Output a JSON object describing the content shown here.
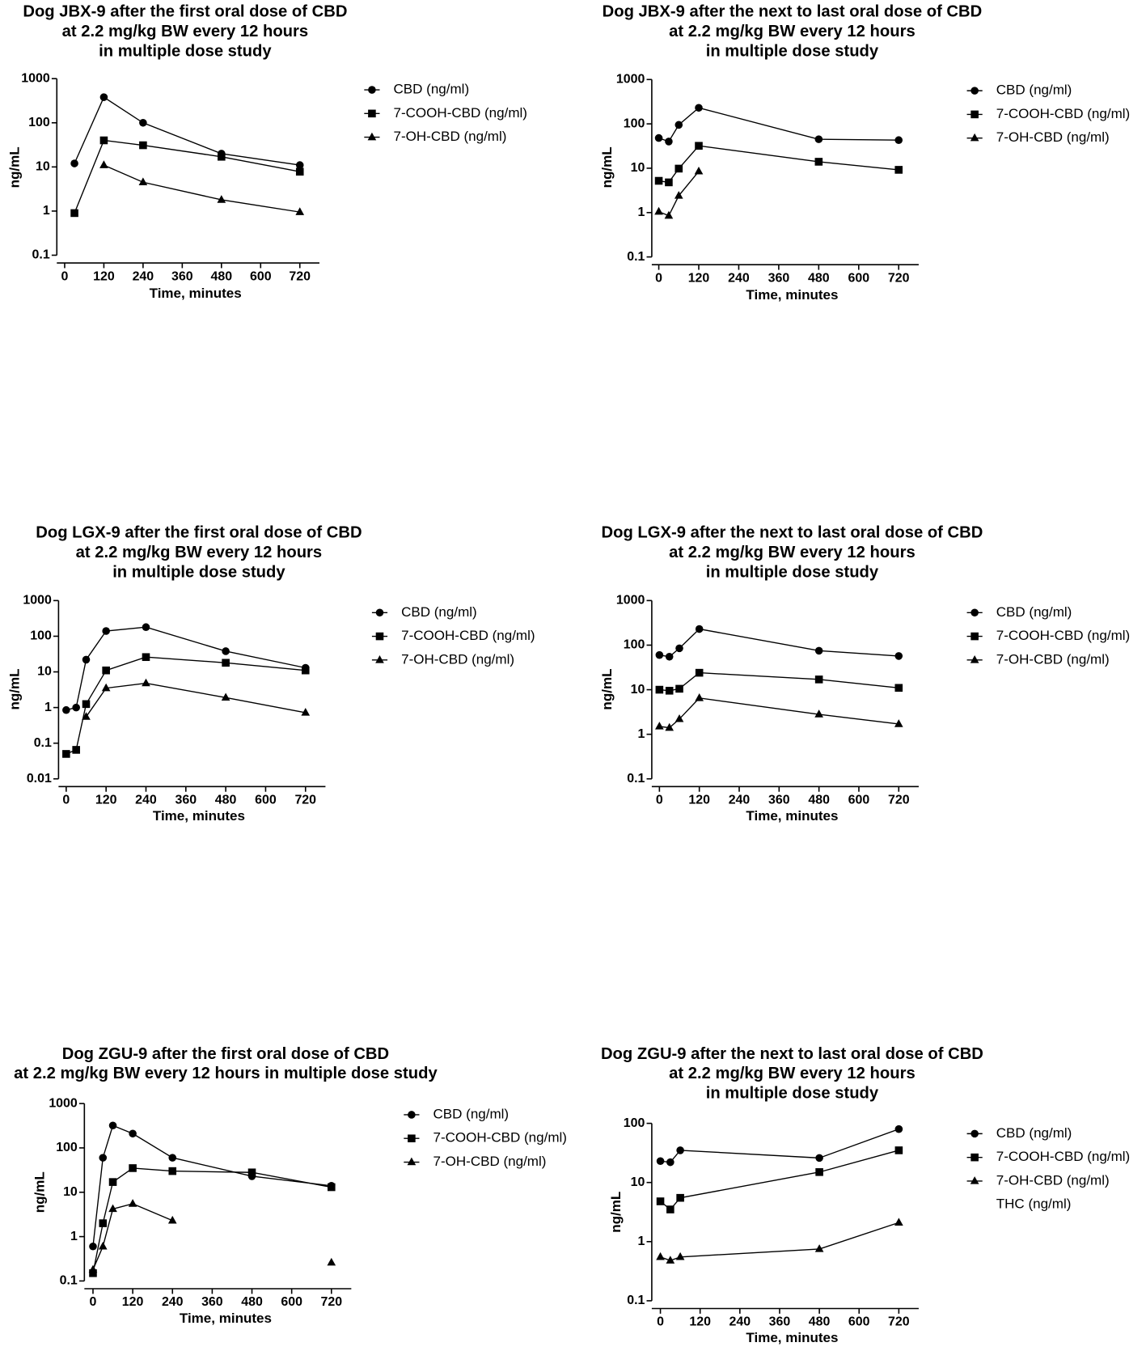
{
  "chart_data": [
    {
      "type": "line",
      "title": [
        "Dog JBX-9 after the first oral dose of CBD",
        "at 2.2 mg/kg BW every 12 hours",
        "in multiple dose study"
      ],
      "x_label": "Time, minutes",
      "y_label": "ng/mL",
      "log_y": true,
      "xlim": [
        -24,
        780
      ],
      "xticks": [
        0,
        120,
        240,
        360,
        480,
        600,
        720
      ],
      "ylim": [
        0.1,
        1000
      ],
      "yticks": [
        0.1,
        1,
        10,
        100,
        1000
      ],
      "x": [
        30,
        120,
        240,
        480,
        720
      ],
      "series": [
        {
          "name": "CBD (ng/ml)",
          "color": "#000000",
          "marker": "circle",
          "values": [
            12,
            380,
            100,
            20,
            11
          ]
        },
        {
          "name": "7-COOH-CBD (ng/ml)",
          "color": "#000000",
          "marker": "square",
          "values": [
            0.9,
            40,
            31,
            17,
            7.8
          ]
        },
        {
          "name": "7-OH-CBD (ng/ml)",
          "color": "#000000",
          "marker": "triangle",
          "values": [
            null,
            11,
            4.5,
            1.8,
            0.95
          ]
        }
      ]
    },
    {
      "type": "line",
      "title": [
        "Dog JBX-9 after the next to last oral dose of CBD",
        "at 2.2 mg/kg BW every 12 hours",
        "in multiple dose study"
      ],
      "x_label": "Time, minutes",
      "y_label": "ng/mL",
      "log_y": true,
      "xlim": [
        -21,
        780
      ],
      "xticks": [
        0,
        120,
        240,
        360,
        480,
        600,
        720
      ],
      "ylim": [
        0.1,
        1000
      ],
      "yticks": [
        0.1,
        1,
        10,
        100,
        1000
      ],
      "x": [
        0,
        30,
        60,
        120,
        480,
        720
      ],
      "series": [
        {
          "name": "CBD (ng/ml)",
          "color": "#000000",
          "marker": "circle",
          "values": [
            48,
            40,
            95,
            230,
            45,
            43
          ]
        },
        {
          "name": "7-COOH-CBD (ng/ml)",
          "color": "#000000",
          "marker": "square",
          "values": [
            5.2,
            4.8,
            9.8,
            32,
            14,
            9.2
          ]
        },
        {
          "name": "7-OH-CBD (ng/ml)",
          "color": "#000000",
          "marker": "triangle",
          "values": [
            1.05,
            0.85,
            2.4,
            8.5,
            null,
            null
          ]
        }
      ]
    },
    {
      "type": "line",
      "title": [
        "Dog LGX-9 after the first oral dose of CBD",
        "at 2.2 mg/kg BW every 12 hours",
        "in multiple dose study"
      ],
      "x_label": "Time, minutes",
      "y_label": "ng/mL",
      "log_y": true,
      "xlim": [
        -23,
        780
      ],
      "xticks": [
        0,
        120,
        240,
        360,
        480,
        600,
        720
      ],
      "ylim": [
        0.01,
        1000
      ],
      "yticks": [
        0.01,
        0.1,
        1,
        10,
        100,
        1000
      ],
      "x": [
        0,
        30,
        60,
        120,
        240,
        480,
        720
      ],
      "series": [
        {
          "name": "CBD (ng/ml)",
          "color": "#000000",
          "marker": "circle",
          "values": [
            0.85,
            1.0,
            22,
            140,
            180,
            38,
            13
          ]
        },
        {
          "name": "7-COOH-CBD (ng/ml)",
          "color": "#000000",
          "marker": "square",
          "values": [
            0.05,
            0.065,
            1.25,
            11,
            26,
            18,
            11
          ]
        },
        {
          "name": "7-OH-CBD (ng/ml)",
          "color": "#000000",
          "marker": "triangle",
          "values": [
            null,
            null,
            0.55,
            3.5,
            4.8,
            1.9,
            0.72
          ]
        }
      ]
    },
    {
      "type": "line",
      "title": [
        "Dog LGX-9 after the next to last oral dose of CBD",
        "at 2.2 mg/kg BW every 12 hours",
        "in multiple dose study"
      ],
      "x_label": "Time, minutes",
      "y_label": "ng/mL",
      "log_y": true,
      "xlim": [
        -23,
        780
      ],
      "xticks": [
        0,
        120,
        240,
        360,
        480,
        600,
        720
      ],
      "ylim": [
        0.1,
        1000
      ],
      "yticks": [
        0.1,
        1,
        10,
        100,
        1000
      ],
      "x": [
        0,
        30,
        60,
        120,
        480,
        720
      ],
      "series": [
        {
          "name": "CBD (ng/ml)",
          "color": "#000000",
          "marker": "circle",
          "values": [
            60,
            55,
            85,
            230,
            75,
            57
          ]
        },
        {
          "name": "7-COOH-CBD (ng/ml)",
          "color": "#000000",
          "marker": "square",
          "values": [
            10,
            9.5,
            10.5,
            24,
            17,
            11
          ]
        },
        {
          "name": "7-OH-CBD (ng/ml)",
          "color": "#000000",
          "marker": "triangle",
          "values": [
            1.5,
            1.4,
            2.2,
            6.5,
            2.8,
            1.7
          ]
        }
      ]
    },
    {
      "type": "line",
      "title": [
        "Dog ZGU-9 after the first oral dose of CBD",
        "at 2.2 mg/kg BW every 12 hours in multiple dose study"
      ],
      "x_label": "Time, minutes",
      "y_label": "ng/mL",
      "log_y": true,
      "xlim": [
        -26,
        780
      ],
      "xticks": [
        0,
        120,
        240,
        360,
        480,
        600,
        720
      ],
      "ylim": [
        0.1,
        1000
      ],
      "yticks": [
        0.1,
        1,
        10,
        100,
        1000
      ],
      "x": [
        0,
        30,
        60,
        120,
        240,
        480,
        720
      ],
      "series": [
        {
          "name": "CBD (ng/ml)",
          "color": "#000000",
          "marker": "circle",
          "values": [
            0.6,
            60,
            320,
            210,
            60,
            23,
            14
          ]
        },
        {
          "name": "7-COOH-CBD (ng/ml)",
          "color": "#000000",
          "marker": "square",
          "values": [
            0.15,
            2,
            17,
            35,
            30,
            28,
            13
          ]
        },
        {
          "name": "7-OH-CBD (ng/ml)",
          "color": "#000000",
          "marker": "triangle",
          "values": [
            0.18,
            0.6,
            4.2,
            5.5,
            2.3,
            null,
            0.26
          ]
        }
      ]
    },
    {
      "type": "line",
      "title": [
        "Dog ZGU-9 after the next to last oral dose of CBD",
        "at 2.2 mg/kg BW every 12 hours",
        "in multiple dose study"
      ],
      "x_label": "Time, minutes",
      "y_label": "ng/mL",
      "log_y": true,
      "xlim": [
        -26,
        780
      ],
      "xticks": [
        0,
        120,
        240,
        360,
        480,
        600,
        720
      ],
      "ylim": [
        0.1,
        100
      ],
      "yticks": [
        0.1,
        1,
        10,
        100
      ],
      "x": [
        0,
        30,
        60,
        480,
        720
      ],
      "series": [
        {
          "name": "CBD (ng/ml)",
          "color": "#000000",
          "marker": "circle",
          "values": [
            23,
            22,
            35,
            26,
            80
          ]
        },
        {
          "name": "7-COOH-CBD (ng/ml)",
          "color": "#000000",
          "marker": "square",
          "values": [
            4.8,
            3.5,
            5.5,
            15,
            35
          ]
        },
        {
          "name": "7-OH-CBD (ng/ml)",
          "color": "#000000",
          "marker": "triangle",
          "values": [
            0.55,
            0.48,
            0.55,
            0.75,
            2.1
          ]
        },
        {
          "name": "THC (ng/ml)",
          "color": "#000000",
          "marker": "none",
          "values": [
            null,
            null,
            null,
            null,
            null
          ]
        }
      ]
    }
  ]
}
